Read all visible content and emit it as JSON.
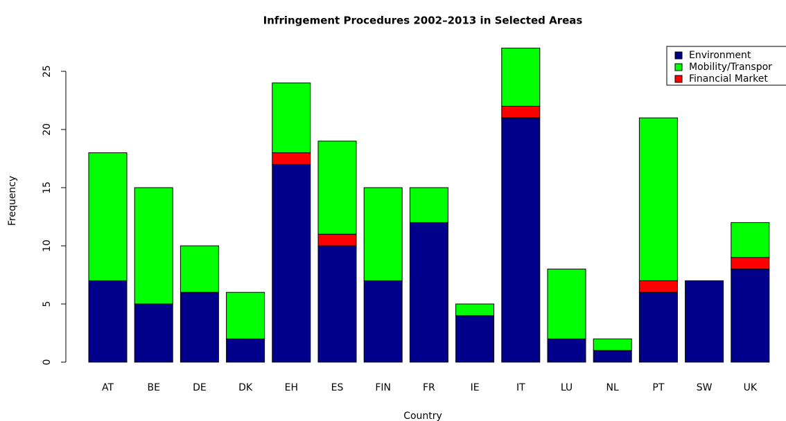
{
  "chart_data": {
    "type": "stacked_bar",
    "title": "Infringement Procedures 2002–2013 in Selected Areas",
    "x_label": "Country",
    "y_label": "Frequency",
    "categories": [
      "AT",
      "BE",
      "DE",
      "DK",
      "EH",
      "ES",
      "FIN",
      "FR",
      "IE",
      "IT",
      "LU",
      "NL",
      "PT",
      "SW",
      "UK"
    ],
    "series": [
      {
        "name": "Environment",
        "color": "#00008b",
        "values": [
          7,
          5,
          6,
          2,
          17,
          10,
          7,
          12,
          4,
          21,
          2,
          1,
          6,
          7,
          8
        ]
      },
      {
        "name": "Mobility/Transpor",
        "color": "#00ff00",
        "values": [
          11,
          10,
          4,
          4,
          6,
          8,
          8,
          3,
          1,
          5,
          6,
          1,
          14,
          0,
          3
        ]
      },
      {
        "name": "Financial Market",
        "color": "#ff0000",
        "values": [
          0,
          0,
          0,
          0,
          1,
          1,
          0,
          0,
          0,
          1,
          0,
          0,
          1,
          0,
          1
        ]
      }
    ],
    "stack_order": [
      0,
      2,
      1
    ],
    "ylim": [
      0,
      27
    ],
    "yticks": [
      0,
      5,
      10,
      15,
      20,
      25
    ],
    "legend": "top-right"
  }
}
